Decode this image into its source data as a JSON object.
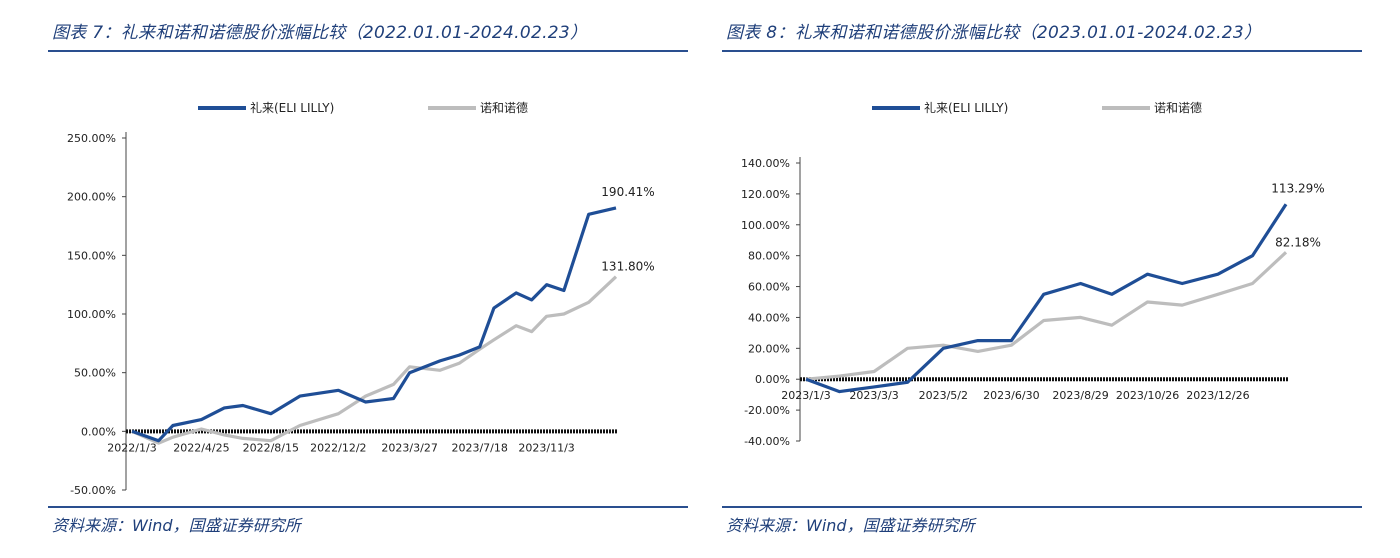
{
  "chart_data": [
    {
      "type": "line",
      "title": "图表 7：礼来和诺和诺德股价涨幅比较（2022.01.01-2024.02.23）",
      "source": "资料来源：Wind，国盛证券研究所",
      "ylim": [
        -50,
        250
      ],
      "yticks": [
        "250.00%",
        "200.00%",
        "150.00%",
        "100.00%",
        "50.00%",
        "0.00%",
        "-50.00%"
      ],
      "ytick_values": [
        250,
        200,
        150,
        100,
        50,
        0,
        -50
      ],
      "xticks": [
        "2022/1/3",
        "2022/4/25",
        "2022/8/15",
        "2022/12/2",
        "2023/3/27",
        "2023/7/18",
        "2023/11/3"
      ],
      "x": [
        "2022/1/3",
        "2022/2/15",
        "2022/3/10",
        "2022/4/25",
        "2022/6/1",
        "2022/7/1",
        "2022/8/15",
        "2022/10/1",
        "2022/12/2",
        "2023/1/15",
        "2023/3/1",
        "2023/3/27",
        "2023/5/15",
        "2023/6/15",
        "2023/7/18",
        "2023/8/10",
        "2023/9/15",
        "2023/10/10",
        "2023/11/3",
        "2023/12/1",
        "2024/1/10",
        "2024/2/23"
      ],
      "series": [
        {
          "name": "礼来(ELI LILLY)",
          "color": "#1f4e96",
          "values": [
            0,
            -8,
            5,
            10,
            20,
            22,
            15,
            30,
            35,
            25,
            28,
            50,
            60,
            65,
            72,
            105,
            118,
            112,
            125,
            120,
            185,
            190.41
          ],
          "end_label": "190.41%"
        },
        {
          "name": "诺和诺德",
          "color": "#bdbdbd",
          "values": [
            0,
            -10,
            -5,
            2,
            -3,
            -6,
            -8,
            5,
            15,
            30,
            40,
            55,
            52,
            58,
            70,
            78,
            90,
            85,
            98,
            100,
            110,
            131.8
          ],
          "end_label": "131.80%"
        }
      ],
      "baseline": 0,
      "legend": "top"
    },
    {
      "type": "line",
      "title": "图表 8：礼来和诺和诺德股价涨幅比较（2023.01.01-2024.02.23）",
      "source": "资料来源：Wind，国盛证券研究所",
      "ylim": [
        -40,
        140
      ],
      "yticks": [
        "140.00%",
        "120.00%",
        "100.00%",
        "80.00%",
        "60.00%",
        "40.00%",
        "20.00%",
        "0.00%",
        "-20.00%",
        "-40.00%"
      ],
      "ytick_values": [
        140,
        120,
        100,
        80,
        60,
        40,
        20,
        0,
        -20,
        -40
      ],
      "xticks": [
        "2023/1/3",
        "2023/3/3",
        "2023/5/2",
        "2023/6/30",
        "2023/8/29",
        "2023/10/26",
        "2023/12/26"
      ],
      "x": [
        "2023/1/3",
        "2023/2/1",
        "2023/3/3",
        "2023/4/1",
        "2023/5/2",
        "2023/6/1",
        "2023/6/30",
        "2023/7/28",
        "2023/8/29",
        "2023/9/25",
        "2023/10/26",
        "2023/11/25",
        "2023/12/26",
        "2024/1/25",
        "2024/2/23"
      ],
      "series": [
        {
          "name": "礼来(ELI LILLY)",
          "color": "#1f4e96",
          "values": [
            0,
            -8,
            -5,
            -2,
            20,
            25,
            25,
            55,
            62,
            55,
            68,
            62,
            68,
            80,
            113.29
          ],
          "end_label": "113.29%"
        },
        {
          "name": "诺和诺德",
          "color": "#bdbdbd",
          "values": [
            0,
            2,
            5,
            20,
            22,
            18,
            22,
            38,
            40,
            35,
            50,
            48,
            55,
            62,
            82.18
          ],
          "end_label": "82.18%"
        }
      ],
      "baseline": 0,
      "legend": "top"
    }
  ]
}
